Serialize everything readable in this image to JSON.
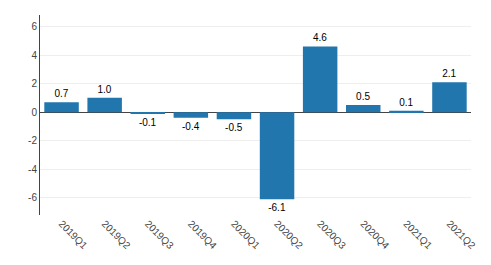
{
  "chart_data": {
    "type": "bar",
    "categories": [
      "2019Q1",
      "2019Q2",
      "2019Q3",
      "2019Q4",
      "2020Q1",
      "2020Q2",
      "2020Q3",
      "2020Q4",
      "2021Q1",
      "2021Q2"
    ],
    "values": [
      0.7,
      1.0,
      -0.1,
      -0.4,
      -0.5,
      -6.1,
      4.6,
      0.5,
      0.1,
      2.1
    ],
    "value_labels": [
      "0.7",
      "1.0",
      "-0.1",
      "-0.4",
      "-0.5",
      "-6.1",
      "4.6",
      "0.5",
      "0.1",
      "2.1"
    ],
    "data_labels": true,
    "color": "#2176ae",
    "ylim": [
      -7.2,
      6.8
    ],
    "yticks": [
      -6,
      -4,
      -2,
      0,
      2,
      4,
      6
    ],
    "grid": true
  }
}
